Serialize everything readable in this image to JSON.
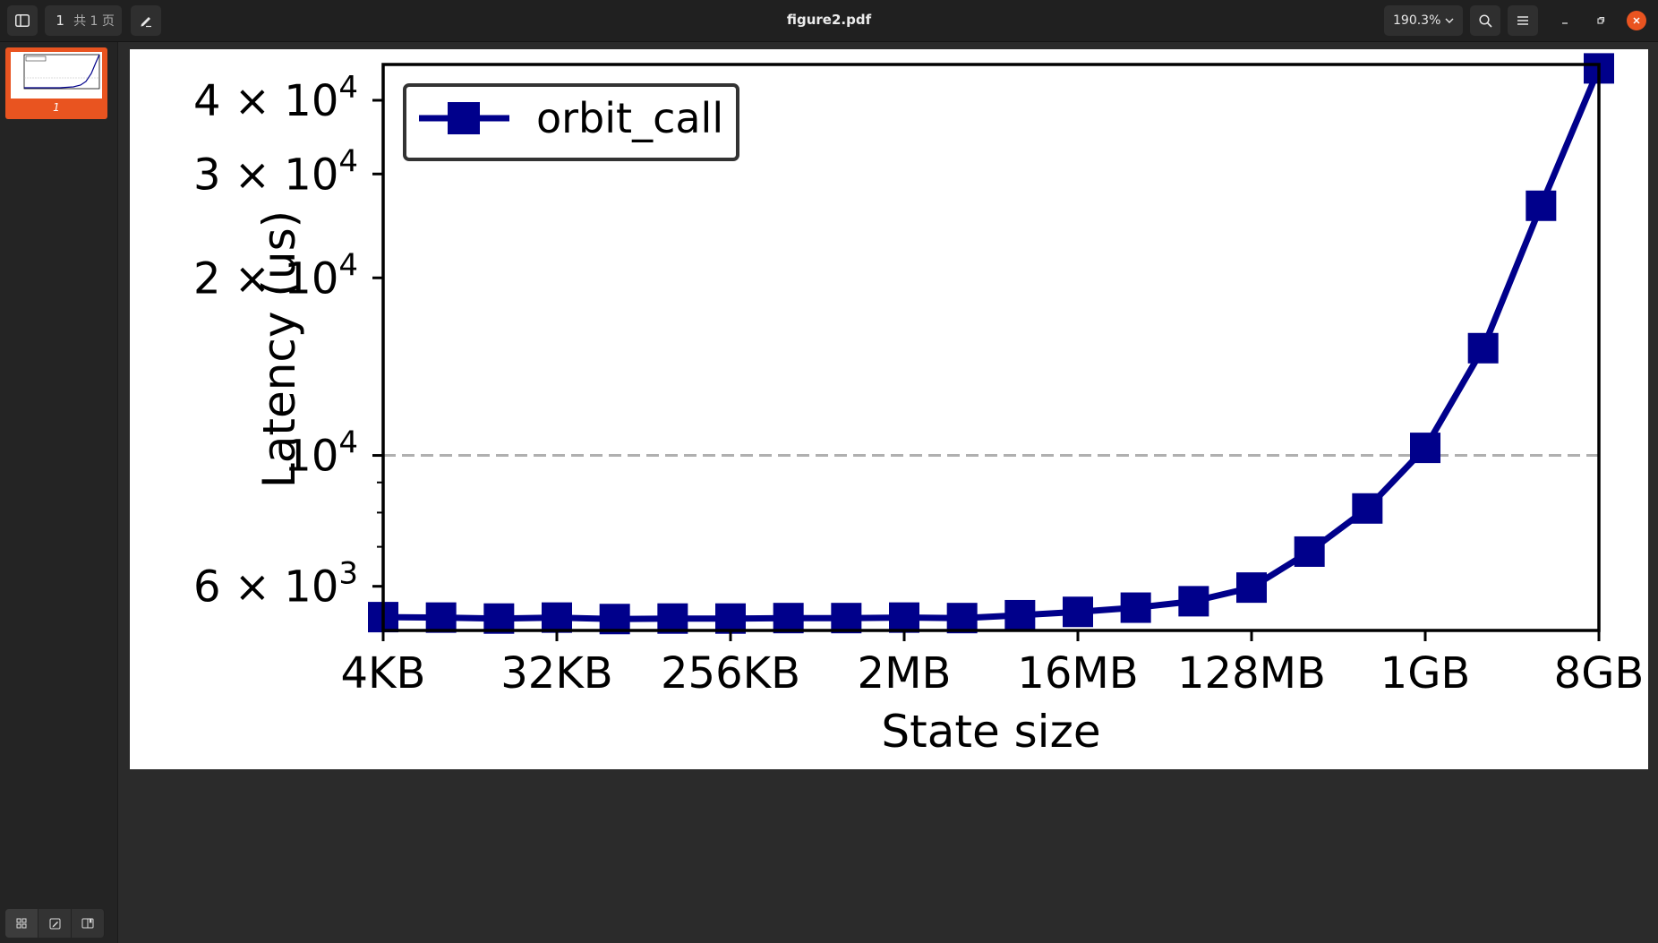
{
  "toolbar": {
    "page_current": "1",
    "page_total": "共 1 页",
    "title": "figure2.pdf",
    "zoom": "190.3%"
  },
  "sidebar": {
    "thumbnail_label": "1"
  },
  "chart_data": {
    "type": "line",
    "xlabel": "State size",
    "ylabel": "Latency (us)",
    "yscale": "log",
    "ylim": [
      5050,
      46000
    ],
    "x_ticks": [
      "4KB",
      "32KB",
      "256KB",
      "2MB",
      "16MB",
      "128MB",
      "1GB",
      "8GB"
    ],
    "y_ticks": [
      {
        "value": 6000,
        "mantissa": "6 × 10",
        "exp": "3"
      },
      {
        "value": 10000,
        "mantissa": "10",
        "exp": "4"
      },
      {
        "value": 20000,
        "mantissa": "2 × 10",
        "exp": "4"
      },
      {
        "value": 30000,
        "mantissa": "3 × 10",
        "exp": "4"
      },
      {
        "value": 40000,
        "mantissa": "4 × 10",
        "exp": "4"
      }
    ],
    "x": [
      "4KB",
      "8KB",
      "16KB",
      "32KB",
      "64KB",
      "128KB",
      "256KB",
      "512KB",
      "1MB",
      "2MB",
      "4MB",
      "8MB",
      "16MB",
      "32MB",
      "64MB",
      "128MB",
      "256MB",
      "512MB",
      "1GB",
      "2GB",
      "4GB",
      "8GB"
    ],
    "series": [
      {
        "name": "orbit_call",
        "color": "#00008b",
        "values": [
          5320,
          5310,
          5290,
          5310,
          5280,
          5290,
          5290,
          5300,
          5300,
          5310,
          5300,
          5360,
          5430,
          5520,
          5660,
          5970,
          6870,
          8130,
          10300,
          15200,
          26500,
          45300
        ]
      }
    ],
    "reference_line": {
      "value": 10000,
      "style": "dashed",
      "color": "#b0b0b0"
    },
    "legend_placement": "top-left",
    "grid": false
  }
}
